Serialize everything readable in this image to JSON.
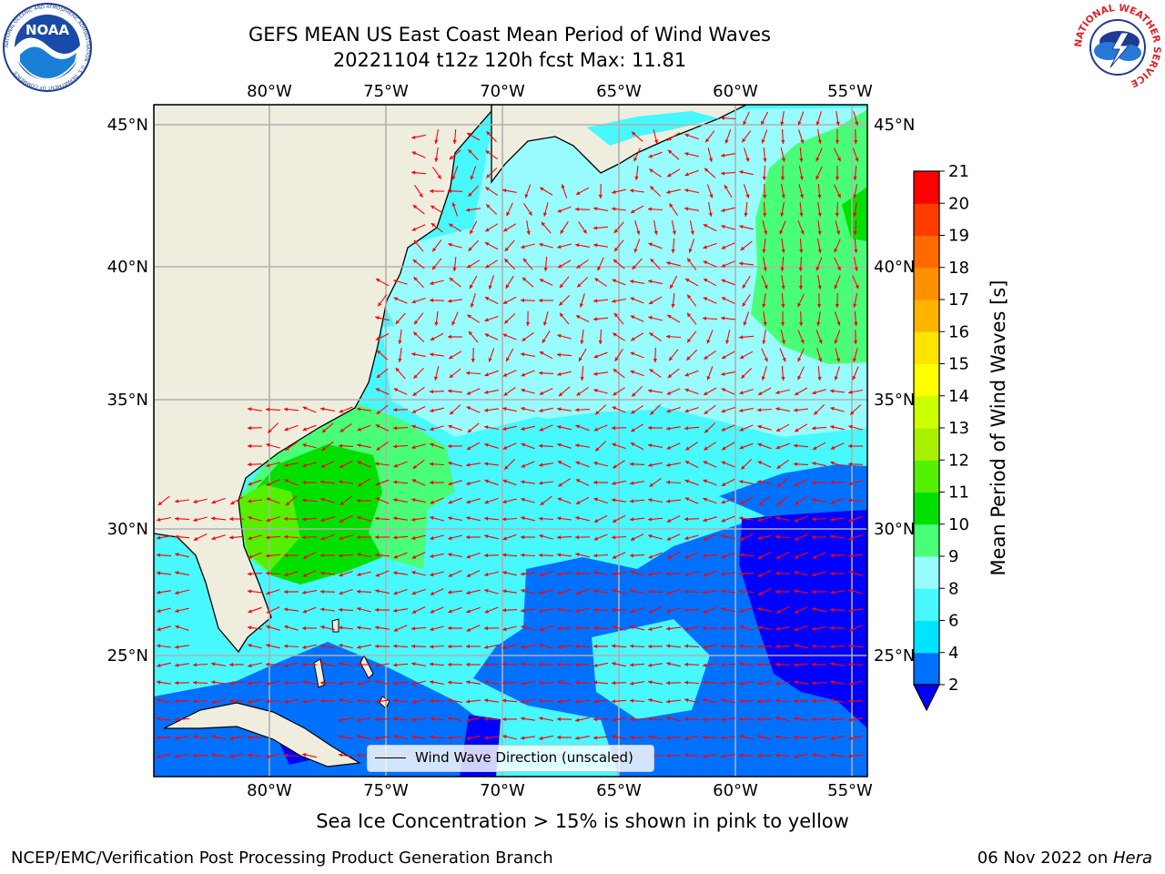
{
  "title": {
    "line1": "GEFS MEAN US East Coast Mean Period of Wind Waves",
    "line2": "20221104 t12z 120h fcst   Max: 11.81"
  },
  "logos": {
    "noaa_text": "NOAA",
    "noaa_ring": "NATIONAL OCEANIC AND ATMOSPHERIC ADMINISTRATION · U.S. DEPARTMENT OF COMMERCE",
    "nws_ring": "NATIONAL WEATHER SERVICE"
  },
  "map": {
    "lon_labels": [
      "80°W",
      "75°W",
      "70°W",
      "65°W",
      "60°W",
      "55°W"
    ],
    "lat_labels": [
      "45°N",
      "40°N",
      "35°N",
      "30°N",
      "25°N"
    ],
    "land_color": "#efedde",
    "grid_color": "#b0b0b0",
    "vector_color": "#ff0000",
    "legend_label": "Wind Wave Direction (unscaled)"
  },
  "colorbar": {
    "label": "Mean Period of Wind Waves [s]",
    "ticks": [
      "2",
      "4",
      "6",
      "8",
      "9",
      "10",
      "11",
      "12",
      "13",
      "14",
      "15",
      "16",
      "17",
      "18",
      "19",
      "20",
      "21"
    ],
    "colors": [
      "#0070ff",
      "#00e4ff",
      "#48f8ff",
      "#98fcff",
      "#4aff78",
      "#00e000",
      "#54f000",
      "#a8f000",
      "#ccff00",
      "#ffff00",
      "#ffe400",
      "#ffb400",
      "#ff9000",
      "#ff6a00",
      "#ff3c00",
      "#ff0000"
    ],
    "underflow_color": "#0000ff"
  },
  "footer": {
    "sea_ice_note": "Sea Ice Concentration > 15% is shown in pink to yellow",
    "credit": "NCEP/EMC/Verification Post Processing Product Generation Branch",
    "date": "06 Nov 2022 on ",
    "host": "Hera"
  }
}
